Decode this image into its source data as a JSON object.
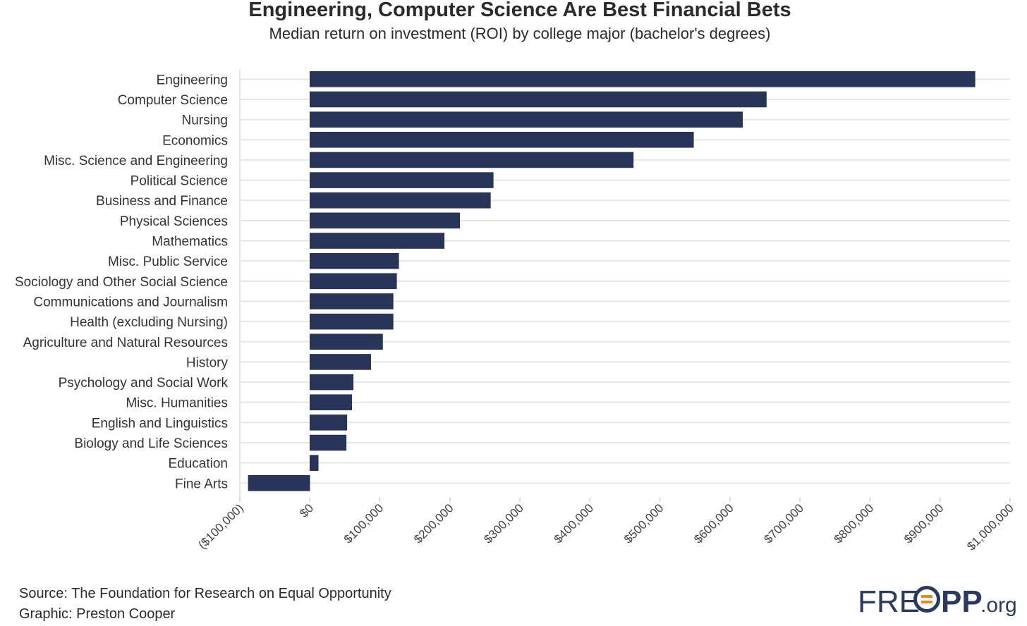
{
  "chart_data": {
    "type": "bar",
    "orientation": "horizontal",
    "title": "Engineering, Computer Science Are Best Financial Bets",
    "subtitle": "Median return on investment (ROI) by college major (bachelor's degrees)",
    "categories": [
      "Engineering",
      "Computer Science",
      "Nursing",
      "Economics",
      "Misc. Science and Engineering",
      "Political Science",
      "Business and Finance",
      "Physical Sciences",
      "Mathematics",
      "Misc. Public Service",
      "Sociology and Other Social Science",
      "Communications and Journalism",
      "Health (excluding Nursing)",
      "Agriculture and Natural Resources",
      "History",
      "Psychology and Social Work",
      "Misc. Humanities",
      "English and Linguistics",
      "Biology and Life Sciences",
      "Education",
      "Fine Arts"
    ],
    "values": [
      950000,
      652000,
      618000,
      548000,
      462000,
      262000,
      258000,
      214000,
      192000,
      127000,
      124000,
      119000,
      119000,
      104000,
      87000,
      62000,
      60000,
      53000,
      52000,
      12000,
      -88000
    ],
    "xlim": [
      -100000,
      1000000
    ],
    "xticks": [
      -100000,
      0,
      100000,
      200000,
      300000,
      400000,
      500000,
      600000,
      700000,
      800000,
      900000,
      1000000
    ],
    "xtick_labels": [
      "($100,000)",
      "$0",
      "$100,000",
      "$200,000",
      "$300,000",
      "$400,000",
      "$500,000",
      "$600,000",
      "$700,000",
      "$800,000",
      "$900,000",
      "$1,000,000"
    ],
    "bar_color": "#283558",
    "grid": true
  },
  "footer": {
    "source": "Source: The Foundation for Research on Equal Opportunity",
    "graphic": "Graphic: Preston Cooper",
    "logo_text": {
      "part1": "FRE",
      "part2": "PP",
      "part3": ".org"
    }
  }
}
